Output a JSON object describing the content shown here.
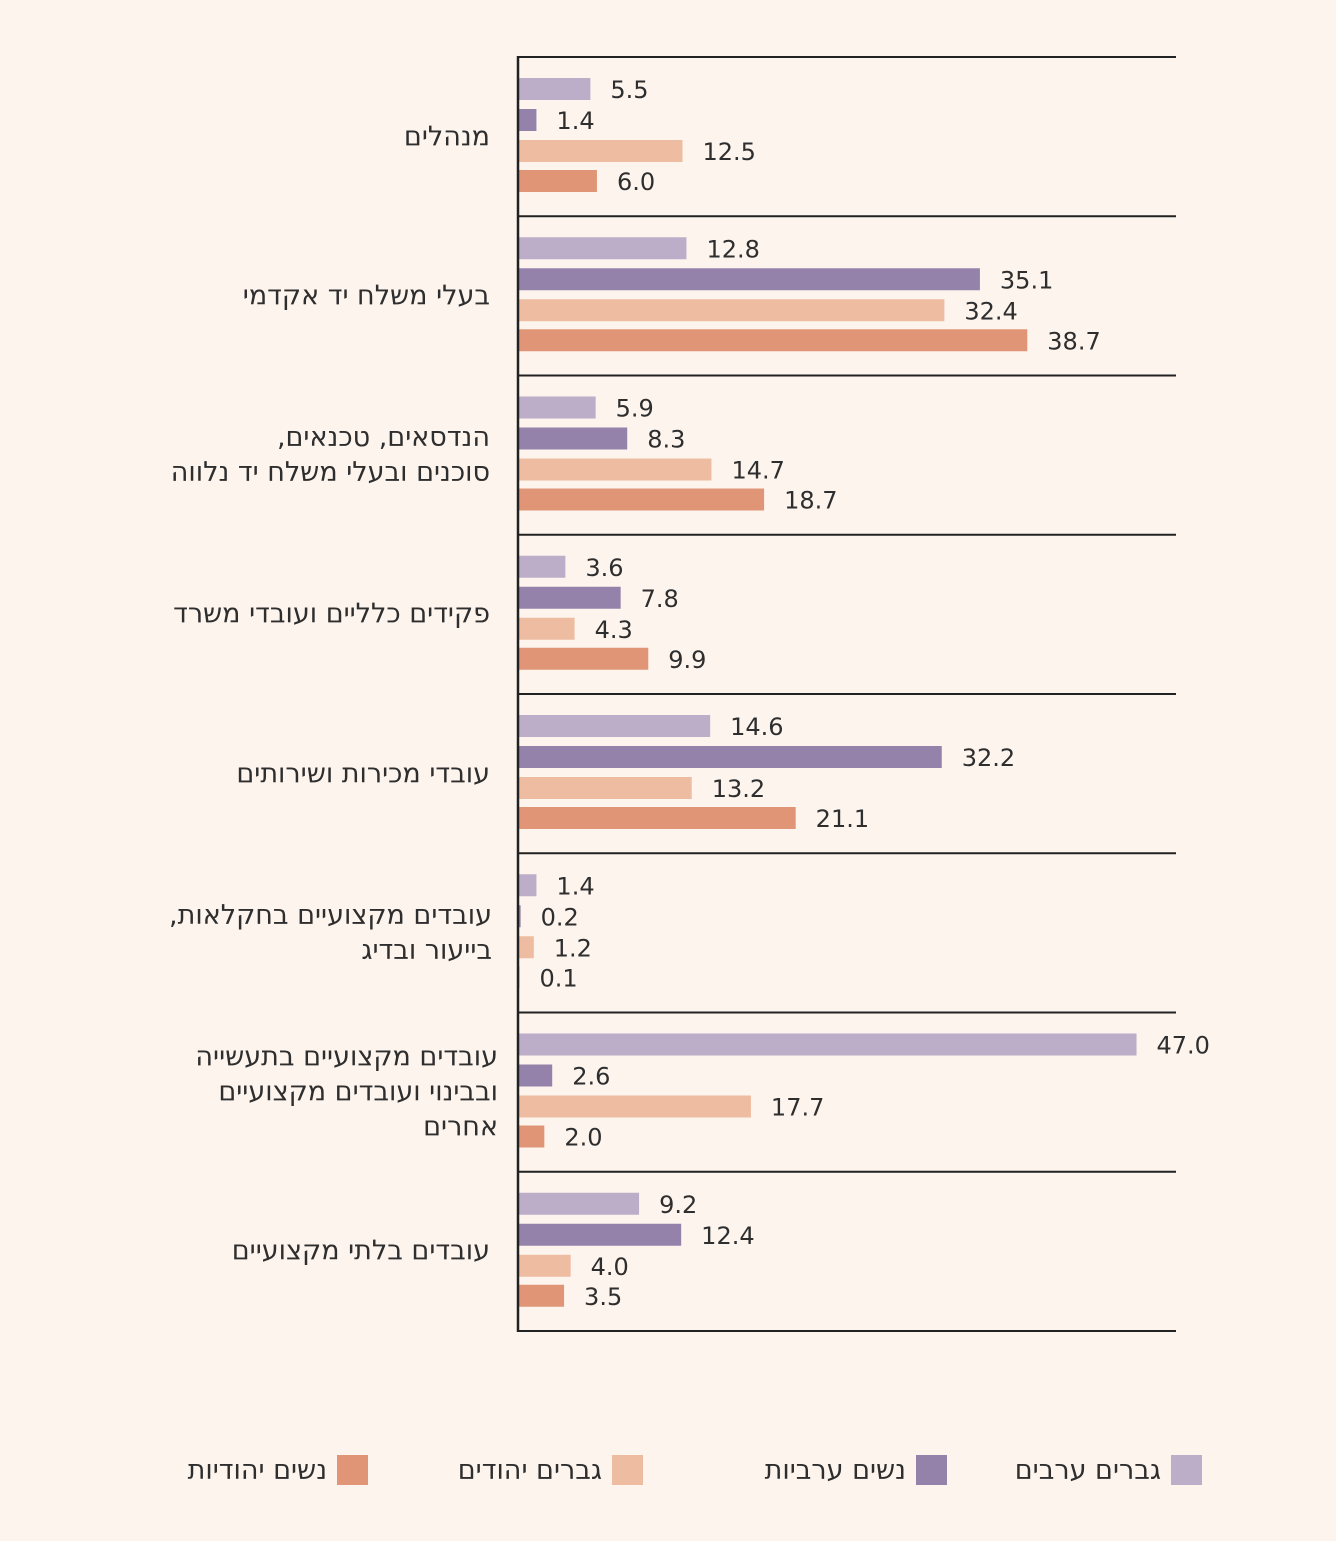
{
  "chart_data": {
    "type": "bar",
    "orientation": "horizontal",
    "title": "",
    "xlabel": "",
    "ylabel": "",
    "xlim": [
      0,
      54
    ],
    "grid": false,
    "legend_position": "bottom",
    "categories": [
      "מנהלים",
      "בעלי משלח יד אקדמי",
      "הנדסאים, טכנאים, סוכנים ובעלי משלח יד נלווה",
      "פקידים כלליים ועובדי משרד",
      "עובדי מכירות ושירותים",
      "עובדים מקצועיים בחקלאות, בייעור ובדיג",
      "עובדים מקצועיים בתעשייה ובבינוי ועובדים  מקצועיים אחרים",
      "עובדים בלתי מקצועיים"
    ],
    "series": [
      {
        "name": "גברים ערבים",
        "color": "#bcadc9",
        "values": [
          5.5,
          12.8,
          5.9,
          3.6,
          14.6,
          1.4,
          47.0,
          9.2
        ]
      },
      {
        "name": "נשים ערביות",
        "color": "#9582ab",
        "values": [
          1.4,
          35.1,
          8.3,
          7.8,
          32.2,
          0.2,
          2.6,
          12.4
        ]
      },
      {
        "name": "גברים יהודים",
        "color": "#edbca1",
        "values": [
          12.5,
          32.4,
          14.7,
          4.3,
          13.2,
          1.2,
          17.7,
          4.0
        ]
      },
      {
        "name": "נשים יהודיות",
        "color": "#e09676",
        "values": [
          6.0,
          38.7,
          18.7,
          9.9,
          21.1,
          0.1,
          2.0,
          3.5
        ]
      }
    ],
    "value_labels": [
      [
        "5.5",
        "1.4",
        "12.5",
        "6.0"
      ],
      [
        "12.8",
        "35.1",
        "32.4",
        "38.7"
      ],
      [
        "5.9",
        "8.3",
        "14.7",
        "18.7"
      ],
      [
        "3.6",
        "7.8",
        "4.3",
        "9.9"
      ],
      [
        "14.6",
        "32.2",
        "13.2",
        "21.1"
      ],
      [
        "1.4",
        "0.2",
        "1.2",
        "0.1"
      ],
      [
        "47.0",
        "2.6",
        "17.7",
        "2.0"
      ],
      [
        "9.2",
        "12.4",
        "4.0",
        "3.5"
      ]
    ]
  },
  "category_lines": [
    [
      "מנהלים"
    ],
    [
      "בעלי משלח יד אקדמי"
    ],
    [
      "הנדסאים, טכנאים,",
      "סוכנים ובעלי משלח יד נלווה"
    ],
    [
      "פקידים כלליים ועובדי משרד"
    ],
    [
      "עובדי מכירות ושירותים"
    ],
    [
      "עובדים מקצועיים בחקלאות,",
      "בייעור ובדיג"
    ],
    [
      "עובדים מקצועיים בתעשייה",
      "ובבינוי ועובדים  מקצועיים",
      "אחרים"
    ],
    [
      "עובדים בלתי מקצועיים"
    ]
  ],
  "colors": {
    "background": "#fdf4ee",
    "axis": "#222222",
    "text": "#2e2e2e"
  }
}
